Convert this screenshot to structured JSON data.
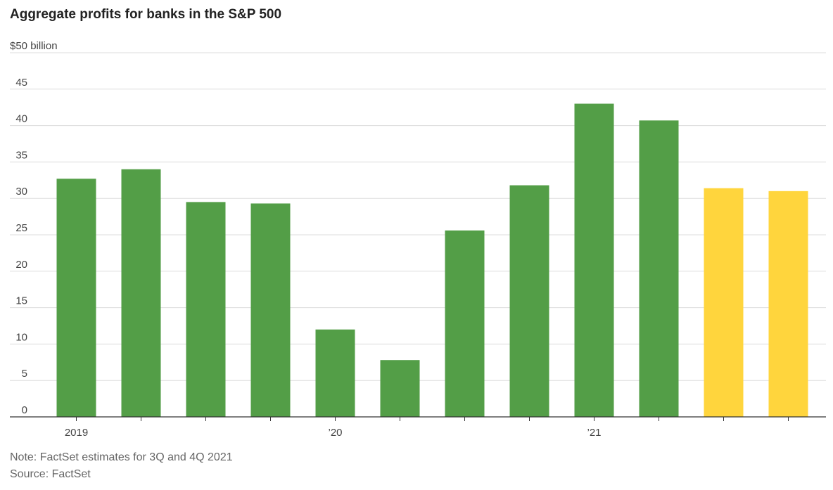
{
  "title": "Aggregate profits for banks in the S&P 500",
  "note": "Note: FactSet estimates for 3Q and 4Q 2021",
  "source": "Source: FactSet",
  "colors": {
    "actual": "#539e47",
    "estimate": "#ffd53d",
    "grid": "#dcdcdc",
    "axis": "#333333",
    "tick_text": "#444444"
  },
  "chart_data": {
    "type": "bar",
    "title": "Aggregate profits for banks in the S&P 500",
    "xlabel": "",
    "ylabel": "",
    "unit_label": "$50 billion",
    "ylim": [
      0,
      50
    ],
    "yticks": [
      0,
      5,
      10,
      15,
      20,
      25,
      30,
      35,
      40,
      45
    ],
    "grid": true,
    "x_labels": [
      {
        "index": 0,
        "text": "2019"
      },
      {
        "index": 4,
        "text": "’20"
      },
      {
        "index": 8,
        "text": "’21"
      }
    ],
    "values": [
      32.7,
      34.0,
      29.5,
      29.3,
      12.0,
      7.8,
      25.6,
      31.8,
      43.0,
      40.7,
      31.4,
      31.0
    ],
    "estimate": [
      false,
      false,
      false,
      false,
      false,
      false,
      false,
      false,
      false,
      false,
      true,
      true
    ]
  }
}
